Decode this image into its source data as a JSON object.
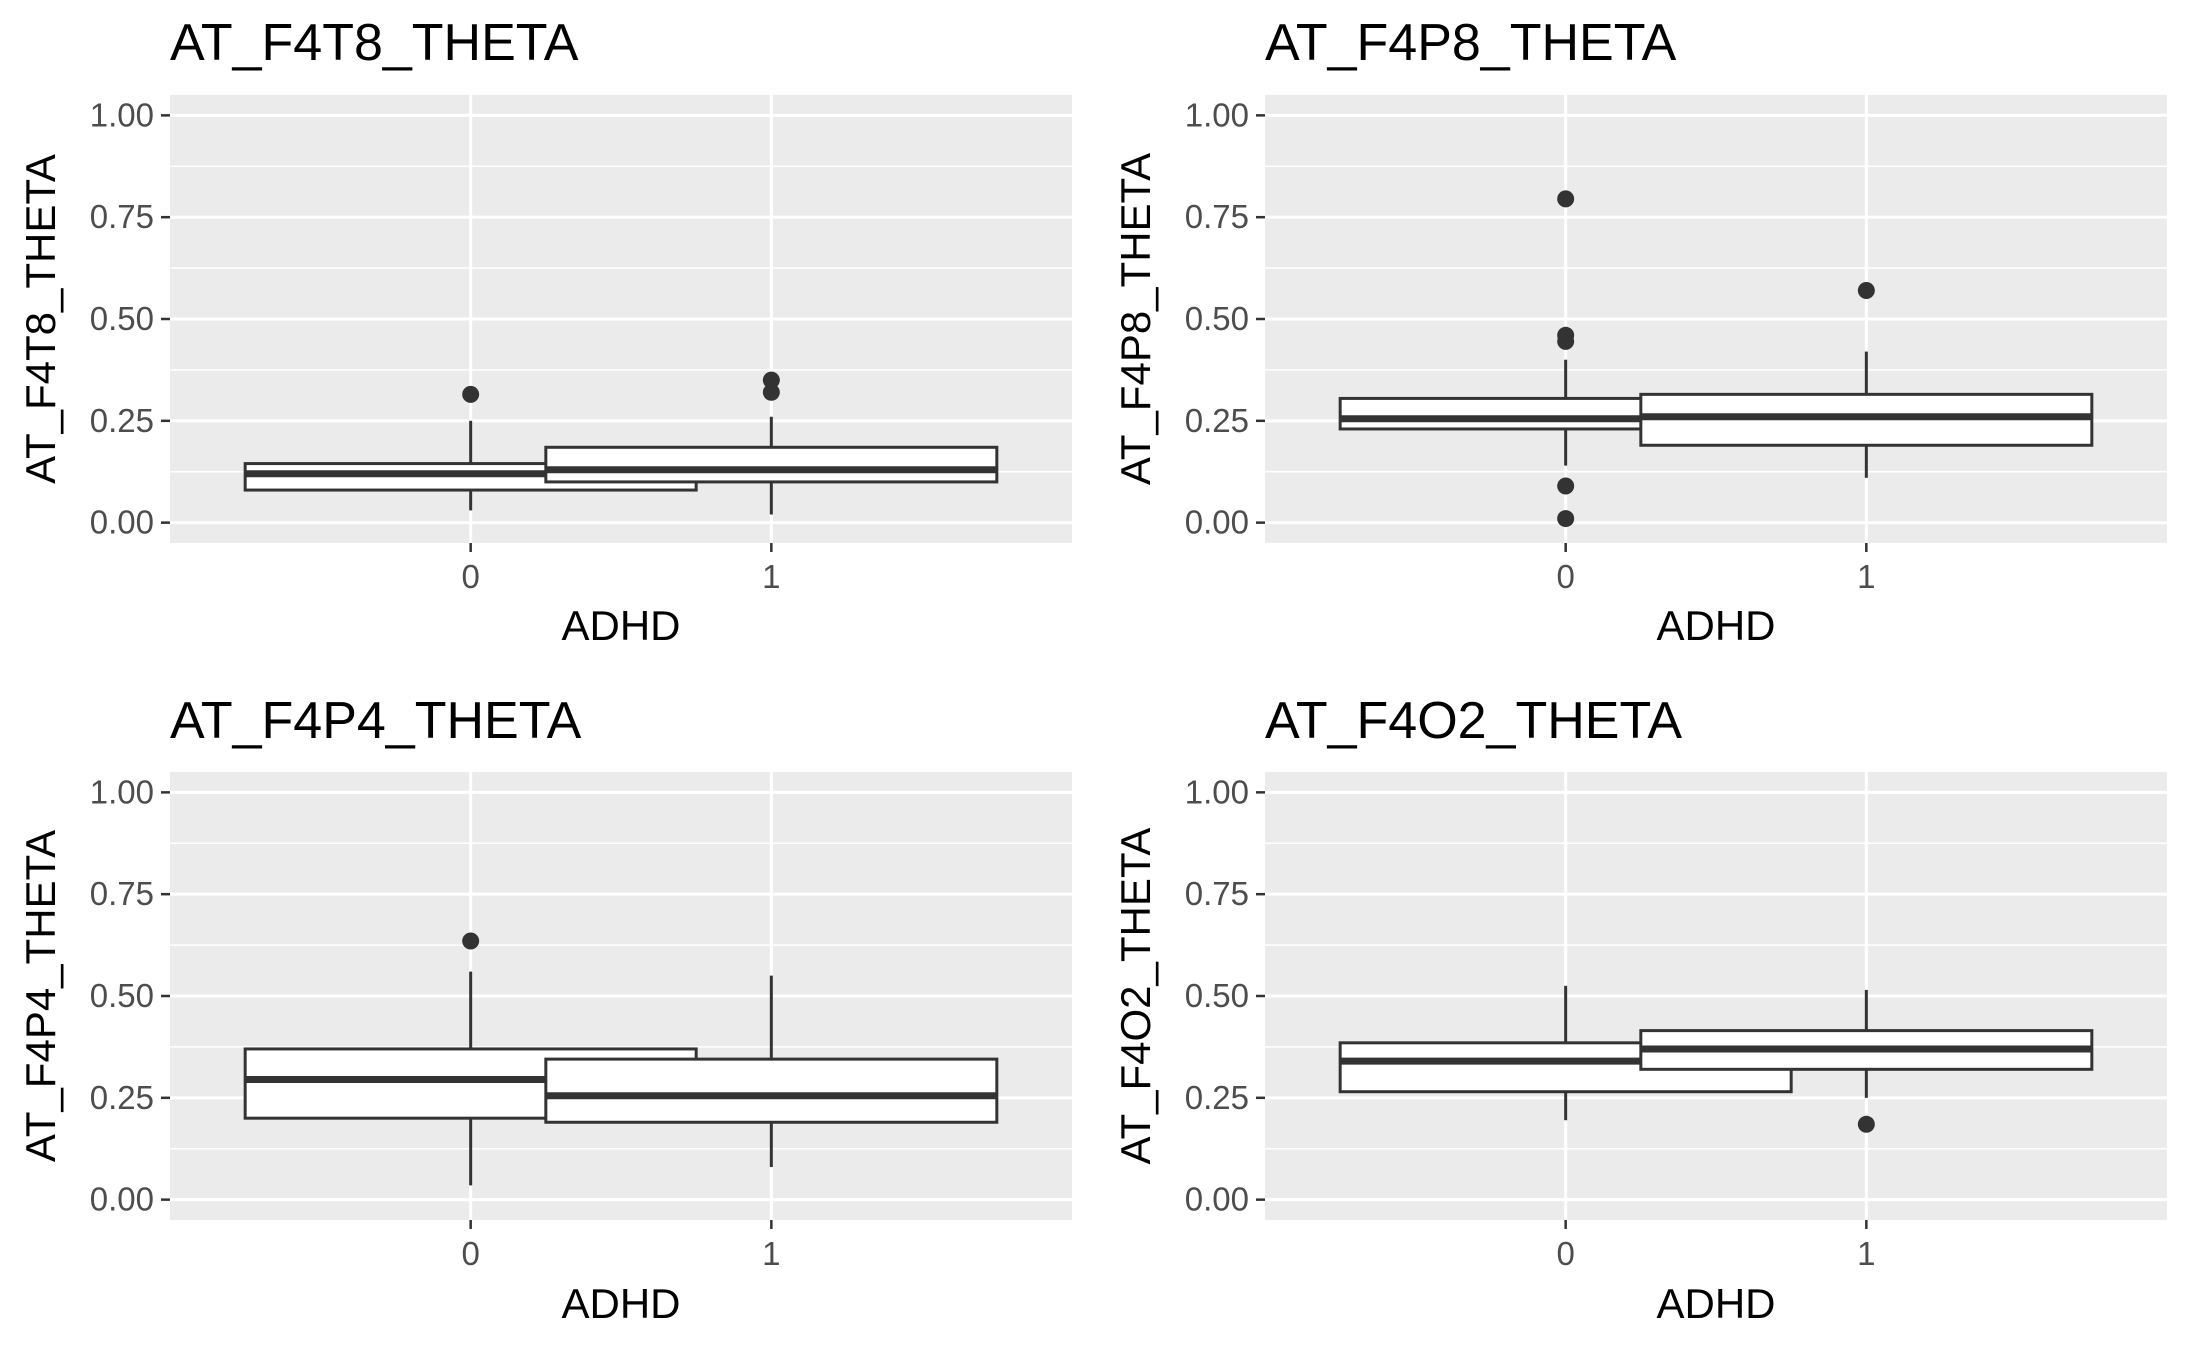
{
  "chart_data": [
    {
      "type": "boxplot",
      "title": "AT_F4T8_THETA",
      "xlabel": "ADHD",
      "ylabel": "AT_F4T8_THETA",
      "categories": [
        "0",
        "1"
      ],
      "ylim": [
        -0.05,
        1.05
      ],
      "yticks": [
        "0.00",
        "0.25",
        "0.50",
        "0.75",
        "1.00"
      ],
      "boxes": [
        {
          "category": "0",
          "whisker_low": 0.03,
          "q1": 0.08,
          "median": 0.12,
          "q3": 0.145,
          "whisker_high": 0.25,
          "outliers": [
            0.315
          ]
        },
        {
          "category": "1",
          "whisker_low": 0.02,
          "q1": 0.1,
          "median": 0.13,
          "q3": 0.185,
          "whisker_high": 0.26,
          "outliers": [
            0.32,
            0.35
          ]
        }
      ]
    },
    {
      "type": "boxplot",
      "title": "AT_F4P8_THETA",
      "xlabel": "ADHD",
      "ylabel": "AT_F4P8_THETA",
      "categories": [
        "0",
        "1"
      ],
      "ylim": [
        -0.05,
        1.05
      ],
      "yticks": [
        "0.00",
        "0.25",
        "0.50",
        "0.75",
        "1.00"
      ],
      "boxes": [
        {
          "category": "0",
          "whisker_low": 0.14,
          "q1": 0.23,
          "median": 0.255,
          "q3": 0.305,
          "whisker_high": 0.4,
          "outliers": [
            0.795,
            0.46,
            0.445,
            0.09,
            0.01
          ]
        },
        {
          "category": "1",
          "whisker_low": 0.11,
          "q1": 0.19,
          "median": 0.26,
          "q3": 0.315,
          "whisker_high": 0.42,
          "outliers": [
            0.57
          ]
        }
      ]
    },
    {
      "type": "boxplot",
      "title": "AT_F4P4_THETA",
      "xlabel": "ADHD",
      "ylabel": "AT_F4P4_THETA",
      "categories": [
        "0",
        "1"
      ],
      "ylim": [
        -0.05,
        1.05
      ],
      "yticks": [
        "0.00",
        "0.25",
        "0.50",
        "0.75",
        "1.00"
      ],
      "boxes": [
        {
          "category": "0",
          "whisker_low": 0.035,
          "q1": 0.2,
          "median": 0.295,
          "q3": 0.37,
          "whisker_high": 0.56,
          "outliers": [
            0.635
          ]
        },
        {
          "category": "1",
          "whisker_low": 0.08,
          "q1": 0.19,
          "median": 0.255,
          "q3": 0.345,
          "whisker_high": 0.55,
          "outliers": []
        }
      ]
    },
    {
      "type": "boxplot",
      "title": "AT_F4O2_THETA",
      "xlabel": "ADHD",
      "ylabel": "AT_F4O2_THETA",
      "categories": [
        "0",
        "1"
      ],
      "ylim": [
        -0.05,
        1.05
      ],
      "yticks": [
        "0.00",
        "0.25",
        "0.50",
        "0.75",
        "1.00"
      ],
      "boxes": [
        {
          "category": "0",
          "whisker_low": 0.195,
          "q1": 0.265,
          "median": 0.34,
          "q3": 0.385,
          "whisker_high": 0.525,
          "outliers": []
        },
        {
          "category": "1",
          "whisker_low": 0.25,
          "q1": 0.32,
          "median": 0.37,
          "q3": 0.415,
          "whisker_high": 0.515,
          "outliers": [
            0.185
          ]
        }
      ]
    }
  ],
  "colors": {
    "panel_background": "#ebebeb",
    "grid": "#ffffff",
    "box_fill": "#ffffff",
    "box_line": "#333333",
    "outlier": "#333333",
    "tick_label": "#4d4d4d",
    "text": "#000000"
  }
}
